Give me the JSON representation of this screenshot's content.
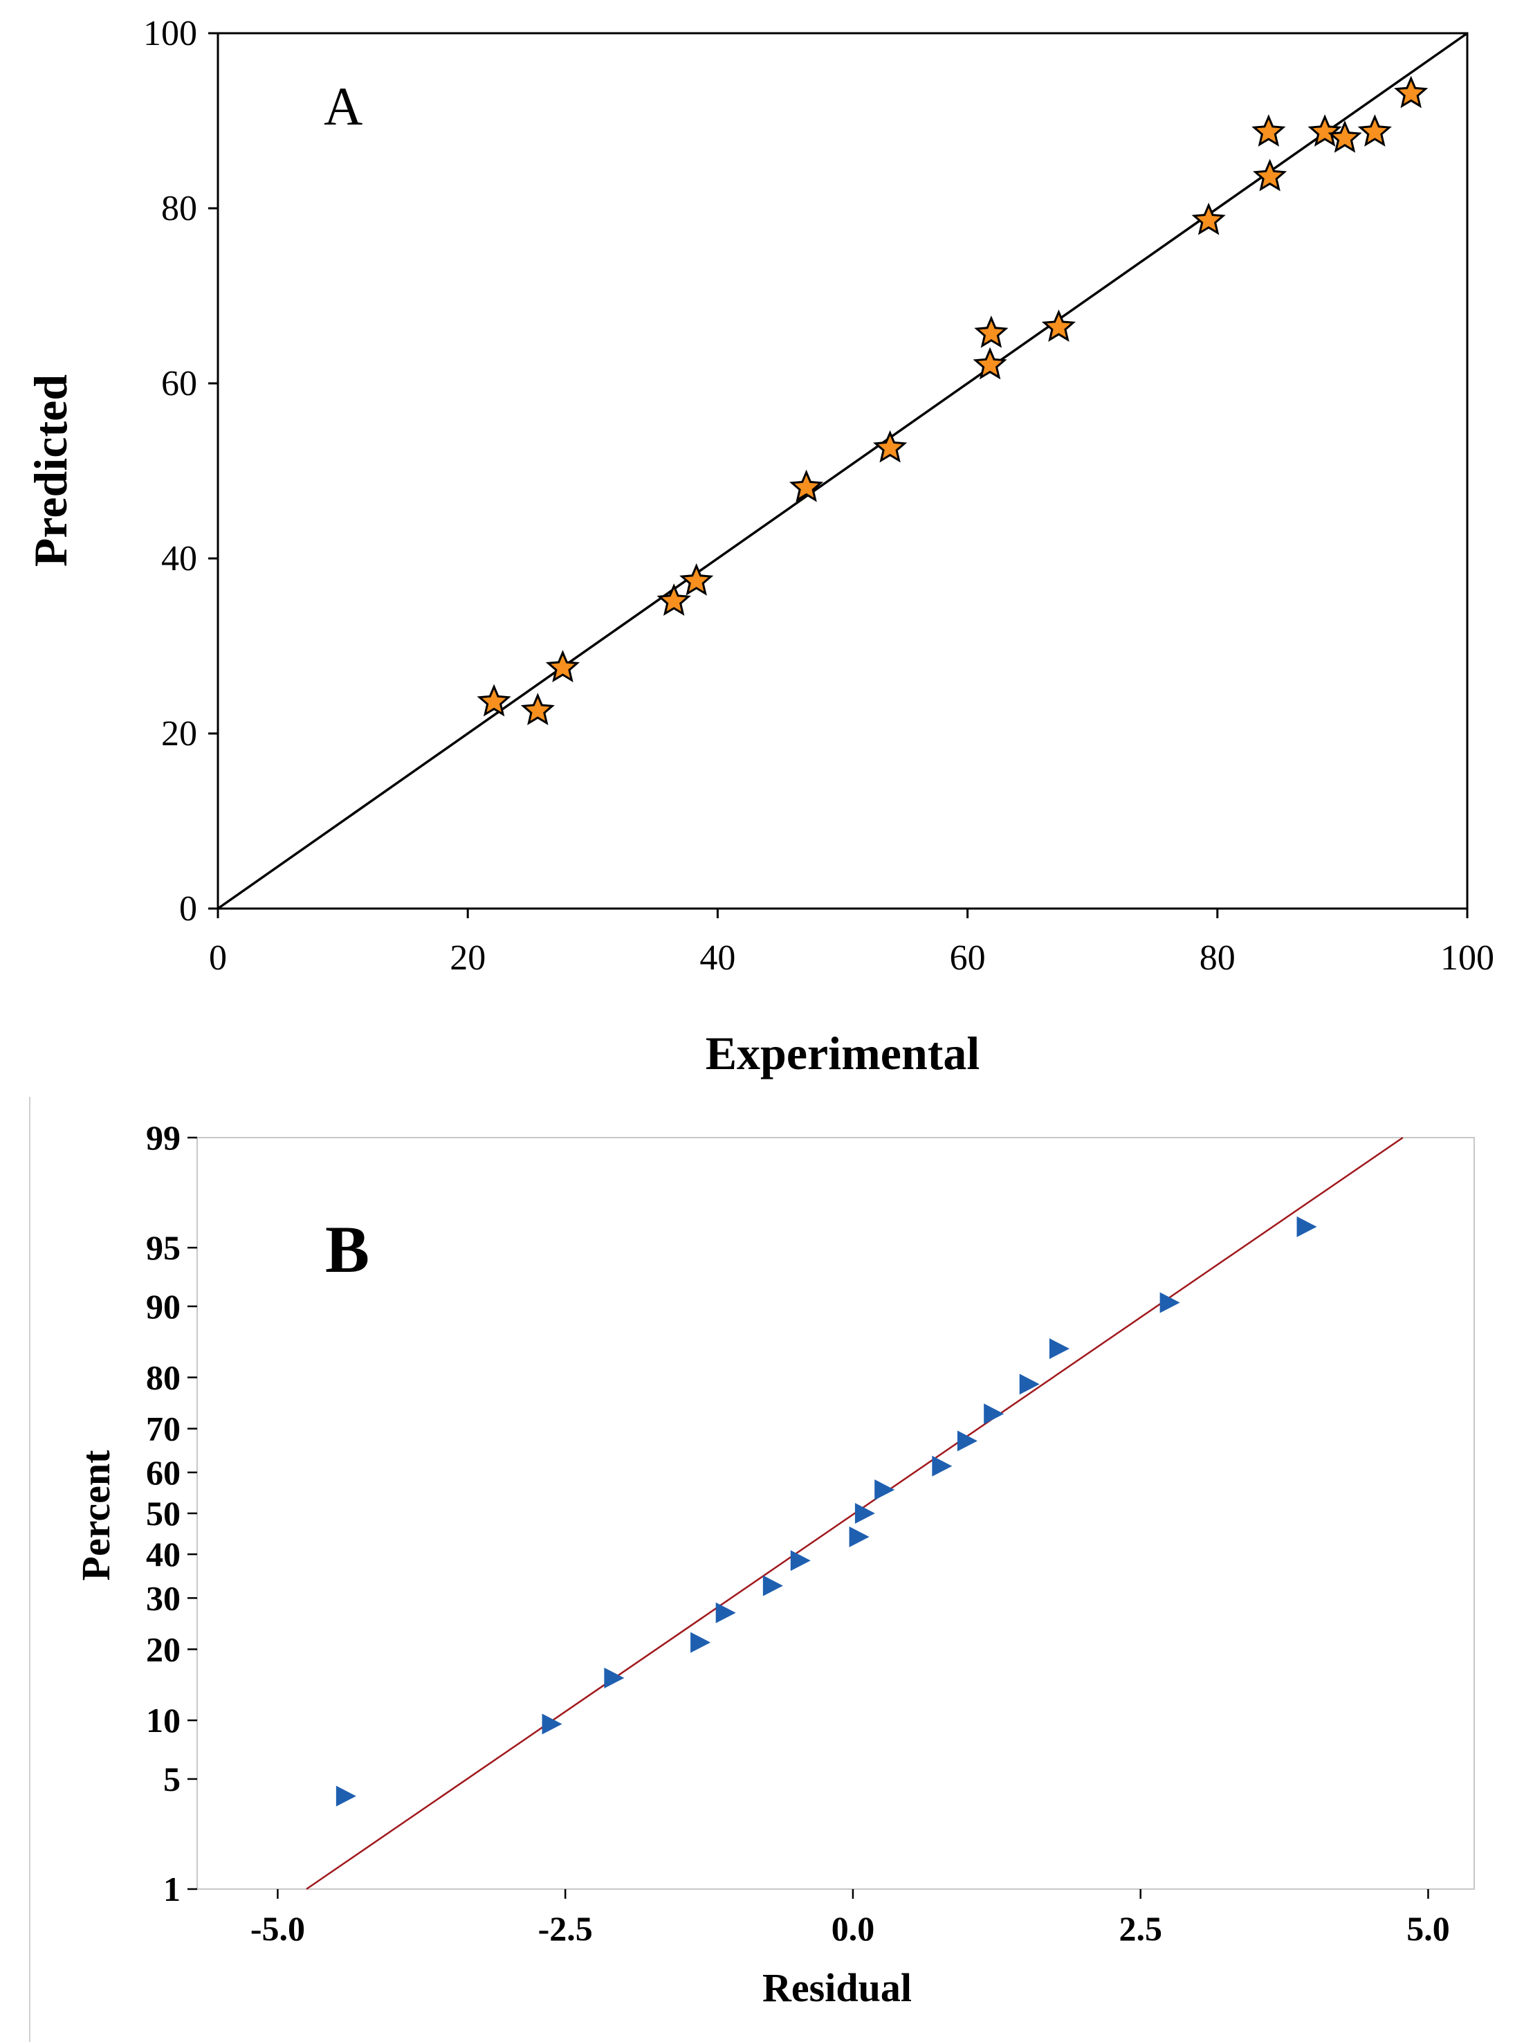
{
  "chart_data": [
    {
      "type": "scatter",
      "panel_label": "A",
      "xlabel": "Experimental",
      "ylabel": "Predicted",
      "xlim": [
        0,
        100
      ],
      "ylim": [
        0,
        100
      ],
      "xticks": [
        "0",
        "20",
        "40",
        "60",
        "80",
        "100"
      ],
      "yticks": [
        "0",
        "20",
        "40",
        "60",
        "80",
        "100"
      ],
      "grid": false,
      "marker": "star",
      "marker_color": "#f7901e",
      "fit_line": {
        "from": [
          0,
          0
        ],
        "to": [
          100,
          100
        ],
        "color": "#000000"
      },
      "points": [
        {
          "x": 22.1,
          "y": 23.6
        },
        {
          "x": 25.6,
          "y": 22.6
        },
        {
          "x": 27.6,
          "y": 27.5
        },
        {
          "x": 36.5,
          "y": 35.1
        },
        {
          "x": 38.3,
          "y": 37.4
        },
        {
          "x": 47.1,
          "y": 48.1
        },
        {
          "x": 53.8,
          "y": 52.6
        },
        {
          "x": 61.8,
          "y": 62.1
        },
        {
          "x": 61.9,
          "y": 65.7
        },
        {
          "x": 67.3,
          "y": 66.4
        },
        {
          "x": 79.3,
          "y": 78.6
        },
        {
          "x": 84.2,
          "y": 83.6
        },
        {
          "x": 84.1,
          "y": 88.7
        },
        {
          "x": 88.6,
          "y": 88.7
        },
        {
          "x": 90.2,
          "y": 88.0
        },
        {
          "x": 92.6,
          "y": 88.7
        },
        {
          "x": 95.5,
          "y": 93.1
        }
      ]
    },
    {
      "type": "scatter",
      "panel_label": "B",
      "xlabel": "Residual",
      "ylabel": "Percent",
      "xlim": [
        -5.7,
        5.4
      ],
      "xticks": [
        "-5.0",
        "-2.5",
        "0.0",
        "2.5",
        "5.0"
      ],
      "xtick_values": [
        -5.0,
        -2.5,
        0.0,
        2.5,
        5.0
      ],
      "yscale": "normal-probability",
      "yticks": [
        "1",
        "5",
        "10",
        "20",
        "30",
        "40",
        "50",
        "60",
        "70",
        "80",
        "90",
        "95",
        "99"
      ],
      "ytick_values": [
        1,
        5,
        10,
        20,
        30,
        40,
        50,
        60,
        70,
        80,
        90,
        95,
        99
      ],
      "grid": false,
      "marker": "triangle-right",
      "marker_color": "#1f5fb0",
      "fit_line": {
        "from": [
          -4.75,
          1
        ],
        "to": [
          4.78,
          99
        ],
        "color": "#a0181c"
      },
      "points": [
        {
          "x": -4.42,
          "y": 4.0
        },
        {
          "x": -2.63,
          "y": 9.6
        },
        {
          "x": -2.09,
          "y": 15.4
        },
        {
          "x": -1.34,
          "y": 21.2
        },
        {
          "x": -1.12,
          "y": 26.9
        },
        {
          "x": -0.71,
          "y": 32.7
        },
        {
          "x": -0.47,
          "y": 38.5
        },
        {
          "x": 0.04,
          "y": 44.2
        },
        {
          "x": 0.09,
          "y": 50.0
        },
        {
          "x": 0.26,
          "y": 55.8
        },
        {
          "x": 0.76,
          "y": 61.5
        },
        {
          "x": 0.98,
          "y": 67.3
        },
        {
          "x": 1.21,
          "y": 73.1
        },
        {
          "x": 1.52,
          "y": 78.8
        },
        {
          "x": 1.78,
          "y": 84.6
        },
        {
          "x": 2.74,
          "y": 90.4
        },
        {
          "x": 3.93,
          "y": 96.2
        }
      ]
    }
  ]
}
